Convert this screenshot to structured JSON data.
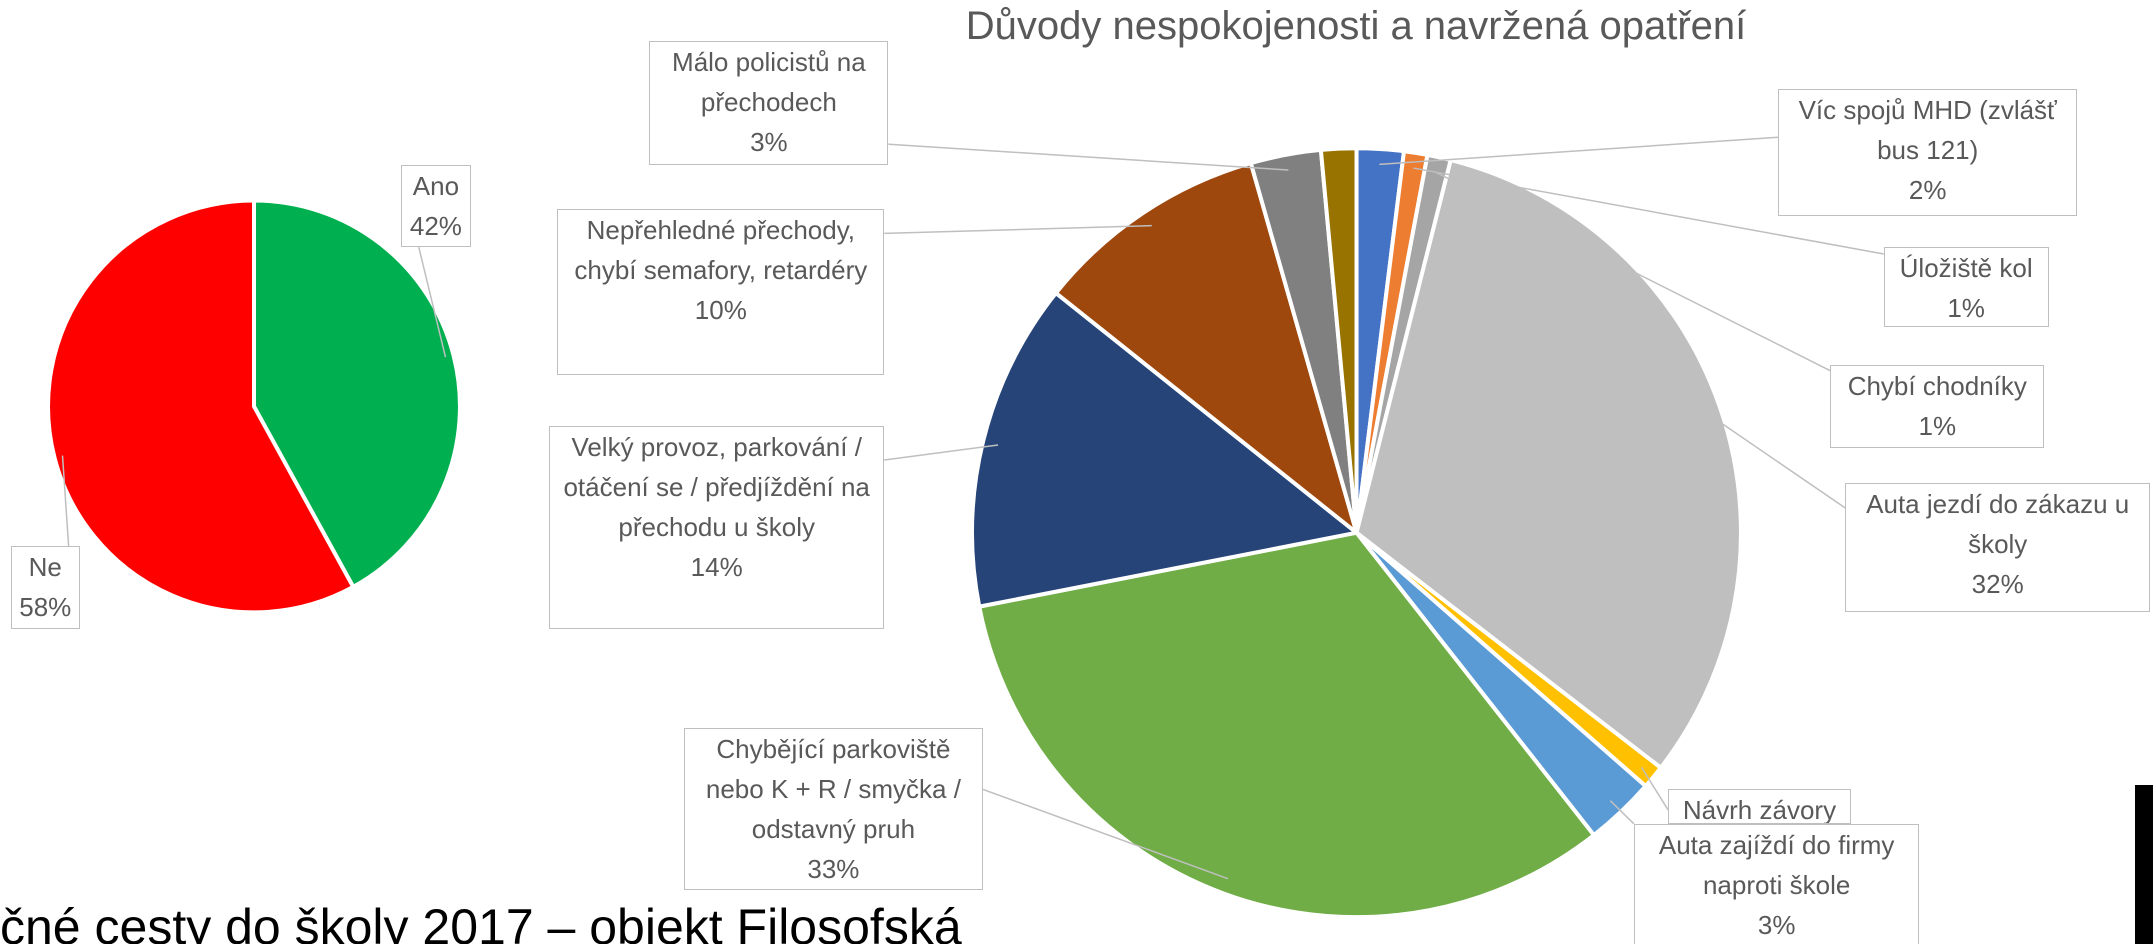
{
  "chart_data": [
    {
      "type": "pie",
      "categories": [
        "Ano",
        "Ne"
      ],
      "values": [
        42,
        58
      ],
      "value_labels": [
        "42%",
        "58%"
      ],
      "colors": [
        "#00b050",
        "#ff0000"
      ]
    },
    {
      "type": "pie",
      "title": "Důvody nespokojenosti a navržená opatření",
      "categories": [
        "Víc spojů MHD (zvlášť bus 121)",
        "Úložiště kol",
        "Chybí chodníky",
        "Auta jezdí do zákazu u školy",
        "Návrh závory",
        "Auta zajíždí do firmy naproti škole",
        "Chybějící parkoviště nebo K + R / smyčka / odstavný pruh",
        "Velký provoz, parkování / otáčení se / předjíždění na přechodu u školy",
        "Nepřehledné přechody, chybí semafory, retardéry",
        "Málo policistů na přechodech",
        null
      ],
      "values": [
        2,
        1,
        1,
        32,
        1,
        3,
        33,
        14,
        10,
        3,
        1.5
      ],
      "value_labels": [
        "2%",
        "1%",
        "1%",
        "32%",
        null,
        "3%",
        "33%",
        "14%",
        "10%",
        "3%",
        null
      ],
      "colors": [
        "#4472c4",
        "#ed7d31",
        "#a5a5a5",
        "#bfbfbf",
        "#ffc000",
        "#5b9bd5",
        "#70ad47",
        "#264478",
        "#9e480e",
        "#808080",
        "#997300"
      ]
    }
  ],
  "footer": "čné cesty do školy 2017 – objekt Filosofská"
}
